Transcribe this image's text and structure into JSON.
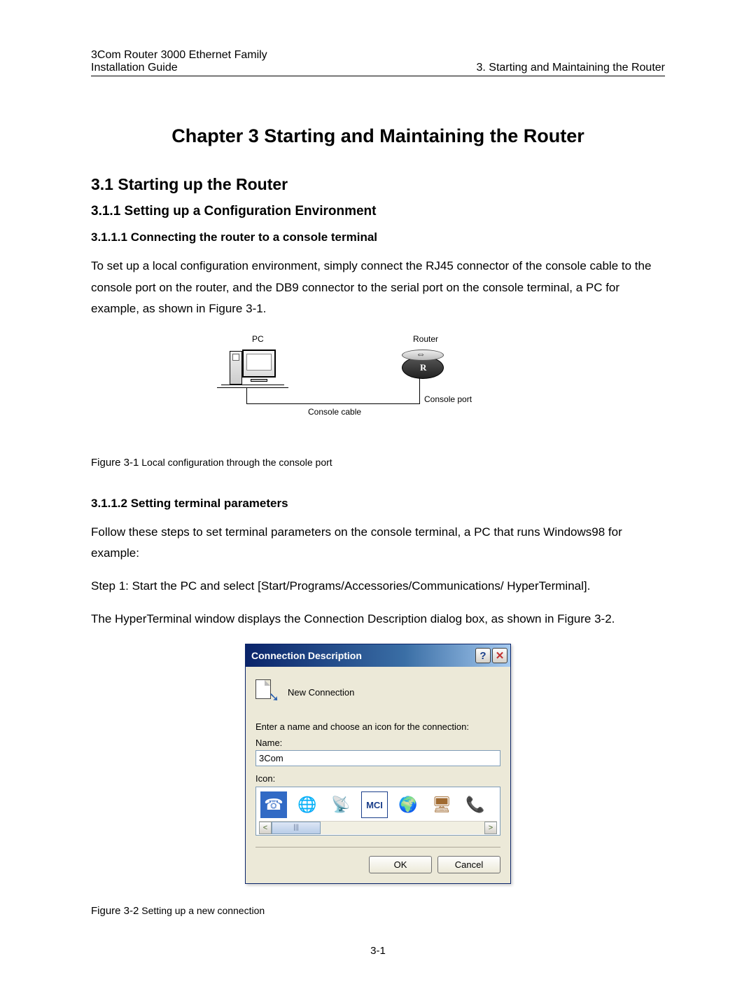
{
  "header": {
    "product_line": "3Com Router 3000 Ethernet Family",
    "doc_title": "Installation Guide",
    "chapter_ref": "3. Starting and Maintaining the Router"
  },
  "chapter": {
    "title": "Chapter 3  Starting and Maintaining the Router"
  },
  "section_3_1": {
    "title": "3.1  Starting up the Router"
  },
  "section_3_1_1": {
    "title": "3.1.1  Setting up a Configuration Environment"
  },
  "section_3_1_1_1": {
    "title": "3.1.1.1 Connecting the router to a console terminal",
    "paragraph": "To set up a local configuration environment, simply connect the RJ45 connector of the console cable to the console port on the router, and the DB9 connector to the serial port on the console terminal, a PC for example, as shown in Figure 3-1."
  },
  "figure_3_1": {
    "pc_label": "PC",
    "router_label": "Router",
    "console_port_label": "Console port",
    "console_cable_label": "Console cable",
    "caption_label": "Figure 3-1",
    "caption_text": "Local configuration through the console port"
  },
  "section_3_1_1_2": {
    "title": "3.1.1.2 Setting terminal parameters",
    "p1": "Follow these steps to set terminal parameters on the console terminal, a PC that runs Windows98 for example:",
    "p2": "Step 1: Start the PC and select [Start/Programs/Accessories/Communications/ HyperTerminal].",
    "p3": "The HyperTerminal window displays the Connection Description dialog box, as shown in Figure 3-2."
  },
  "dialog": {
    "title": "Connection Description",
    "new_connection": "New Connection",
    "prompt": "Enter a name and choose an icon for the connection:",
    "name_label": "Name:",
    "name_value": "3Com",
    "icon_label": "Icon:",
    "ok": "OK",
    "cancel": "Cancel",
    "icons": [
      {
        "name": "phone-icon",
        "glyph": "☎",
        "color": "#c0392b",
        "selected": true
      },
      {
        "name": "globe-icon",
        "glyph": "🌐",
        "color": "#2a60b0",
        "selected": false
      },
      {
        "name": "satellite-icon",
        "glyph": "📡",
        "color": "#b08840",
        "selected": false
      },
      {
        "name": "mci-icon",
        "glyph": "MCI",
        "color": "#1b3f8b",
        "selected": false
      },
      {
        "name": "earth-icon",
        "glyph": "🌍",
        "color": "#2a8040",
        "selected": false
      },
      {
        "name": "computer-icon",
        "glyph": "🖥",
        "color": "#a06a30",
        "selected": false
      },
      {
        "name": "telephone-icon",
        "glyph": "📞",
        "color": "#c08030",
        "selected": false
      }
    ],
    "colors": {
      "titlebar_gradient_start": "#0a246a",
      "titlebar_gradient_mid": "#3a6ea5",
      "titlebar_gradient_end": "#a6caf0",
      "body_bg": "#ece9d8",
      "input_border": "#7f9db9",
      "selection_bg": "#316ac5"
    }
  },
  "figure_3_2": {
    "caption_label": "Figure 3-2",
    "caption_text": "Setting up a new connection"
  },
  "page_number": "3-1"
}
